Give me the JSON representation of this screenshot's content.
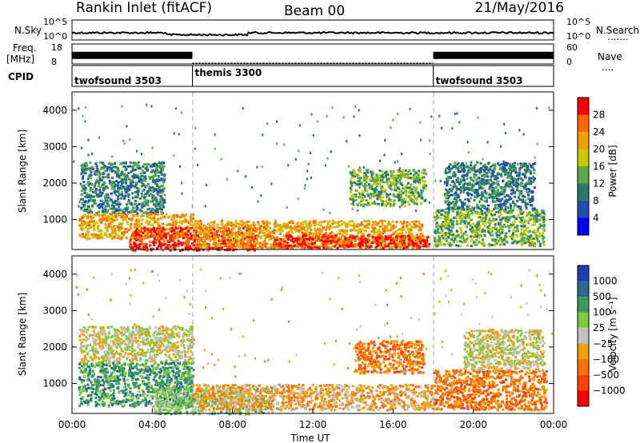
{
  "header": {
    "station": "Rankin Inlet (fitACF)",
    "beam": "Beam 00",
    "date": "21/May/2016"
  },
  "chart_data": [
    {
      "type": "line",
      "name": "noise-panel",
      "left_label": "N.Sky",
      "right_label": "N.Search",
      "left_ticks": [
        "10^5",
        "10^0"
      ],
      "right_ticks": [
        "10^5",
        "10^0"
      ]
    },
    {
      "type": "line",
      "name": "frequency-nave-panel",
      "left_label_top": "Freq.",
      "left_label_unit": "[MHz]",
      "right_label": "Nave",
      "left_ticks": [
        18,
        8
      ],
      "right_ticks": [
        60,
        0
      ],
      "frequency_segments": [
        {
          "start_h": 0.0,
          "end_h": 6.0,
          "value": 12.5
        },
        {
          "start_h": 6.0,
          "end_h": 18.0,
          "value": 8.4
        },
        {
          "start_h": 18.0,
          "end_h": 24.0,
          "value": 12.5
        }
      ]
    },
    {
      "type": "table",
      "name": "cpid-bar",
      "label": "CPID",
      "segments": [
        {
          "name": "twofsound 3503",
          "start_h": 0.0,
          "end_h": 6.0
        },
        {
          "name": "themis 3300",
          "start_h": 6.0,
          "end_h": 18.0
        },
        {
          "name": "twofsound 3503",
          "start_h": 18.0,
          "end_h": 24.0
        }
      ]
    },
    {
      "type": "heatmap",
      "name": "power-panel",
      "ylabel": "Slant Range [km]",
      "yticks": [
        1000,
        2000,
        3000,
        4000
      ],
      "ylim": [
        180,
        4500
      ],
      "xlim": [
        0,
        24
      ],
      "colorbar_label": "Power [dB]",
      "colorbar_ticks": [
        4,
        8,
        12,
        16,
        20,
        24,
        28
      ],
      "colorbar_colors": [
        "#0000ff",
        "#1f4fb2",
        "#2a7a6a",
        "#5aaa4a",
        "#c8c800",
        "#f0a000",
        "#ff6600",
        "#ff0000"
      ],
      "regions": [
        {
          "t0": 0.4,
          "t1": 4.6,
          "r0": 1200,
          "r1": 2600,
          "level": 2
        },
        {
          "t0": 0.3,
          "t1": 6.0,
          "r0": 500,
          "r1": 1200,
          "level": 5
        },
        {
          "t0": 2.8,
          "t1": 9.2,
          "r0": 180,
          "r1": 800,
          "level": 7
        },
        {
          "t0": 6.0,
          "t1": 17.5,
          "r0": 250,
          "r1": 1000,
          "level": 5
        },
        {
          "t0": 10.0,
          "t1": 17.8,
          "r0": 250,
          "r1": 600,
          "level": 7
        },
        {
          "t0": 13.8,
          "t1": 17.6,
          "r0": 1400,
          "r1": 2400,
          "level": 3
        },
        {
          "t0": 18.0,
          "t1": 23.5,
          "r0": 300,
          "r1": 1300,
          "level": 3
        },
        {
          "t0": 18.5,
          "t1": 23.0,
          "r0": 1300,
          "r1": 2600,
          "level": 2
        }
      ]
    },
    {
      "type": "heatmap",
      "name": "velocity-panel",
      "ylabel": "Slant Range [km]",
      "yticks": [
        1000,
        2000,
        3000,
        4000
      ],
      "ylim": [
        180,
        4500
      ],
      "xlim": [
        0,
        24
      ],
      "colorbar_label": "Velocity [m s⁻¹]",
      "colorbar_ticks": [
        1000,
        500,
        100,
        25,
        -25,
        -100,
        -500,
        -1000
      ],
      "colorbar_colors": [
        "#1f3fb0",
        "#2a6a90",
        "#3a9a5a",
        "#7acc3a",
        "#c0c0c0",
        "#f0a000",
        "#ff7000",
        "#ff4000",
        "#ff0000"
      ],
      "xticks": [
        "00:00",
        "04:00",
        "08:00",
        "12:00",
        "16:00",
        "20:00",
        "00:00"
      ],
      "xlabel": "Time UT",
      "regions": [
        {
          "t0": 0.3,
          "t1": 6.0,
          "r0": 1600,
          "r1": 2600,
          "level": 4
        },
        {
          "t0": 0.3,
          "t1": 6.0,
          "r0": 400,
          "r1": 1600,
          "level": 2
        },
        {
          "t0": 4.0,
          "t1": 10.0,
          "r0": 180,
          "r1": 900,
          "level": 3
        },
        {
          "t0": 6.0,
          "t1": 18.0,
          "r0": 300,
          "r1": 1000,
          "level": 5
        },
        {
          "t0": 14.0,
          "t1": 17.5,
          "r0": 1300,
          "r1": 2200,
          "level": 6
        },
        {
          "t0": 18.0,
          "t1": 23.6,
          "r0": 300,
          "r1": 1400,
          "level": 6
        },
        {
          "t0": 19.5,
          "t1": 23.5,
          "r0": 1400,
          "r1": 2500,
          "level": 4
        }
      ]
    }
  ]
}
